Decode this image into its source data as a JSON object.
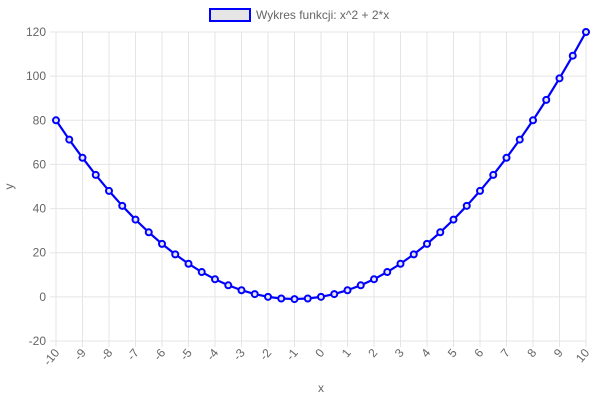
{
  "chart_data": {
    "type": "line",
    "xlabel": "x",
    "ylabel": "y",
    "ylim": [
      -20,
      120
    ],
    "yticks": [
      -20,
      0,
      20,
      40,
      60,
      80,
      100,
      120
    ],
    "xlim": [
      -10,
      10
    ],
    "xticks": [
      -10,
      -9,
      -8,
      -7,
      -6,
      -5,
      -4,
      -3,
      -2,
      -1,
      0,
      1,
      2,
      3,
      4,
      5,
      6,
      7,
      8,
      9,
      10
    ],
    "grid": true,
    "legend_position": "top-center",
    "series": [
      {
        "name": "Wykres funkcji: x^2 + 2*x",
        "color": "#0000ff",
        "fill": "#e6e6e6",
        "x": [
          -10,
          -9.5,
          -9,
          -8.5,
          -8,
          -7.5,
          -7,
          -6.5,
          -6,
          -5.5,
          -5,
          -4.5,
          -4,
          -3.5,
          -3,
          -2.5,
          -2,
          -1.5,
          -1,
          -0.5,
          0,
          0.5,
          1,
          1.5,
          2,
          2.5,
          3,
          3.5,
          4,
          4.5,
          5,
          5.5,
          6,
          6.5,
          7,
          7.5,
          8,
          8.5,
          9,
          9.5,
          10
        ],
        "y": [
          80,
          71.25,
          63,
          55.25,
          48,
          41.25,
          35,
          29.25,
          24,
          19.25,
          15,
          11.25,
          8,
          5.25,
          3,
          1.25,
          0,
          -0.75,
          -1,
          -0.75,
          0,
          1.25,
          3,
          5.25,
          8,
          11.25,
          15,
          19.25,
          24,
          29.25,
          35,
          41.25,
          48,
          55.25,
          63,
          71.25,
          80,
          89.25,
          99,
          109.25,
          120
        ]
      }
    ]
  }
}
